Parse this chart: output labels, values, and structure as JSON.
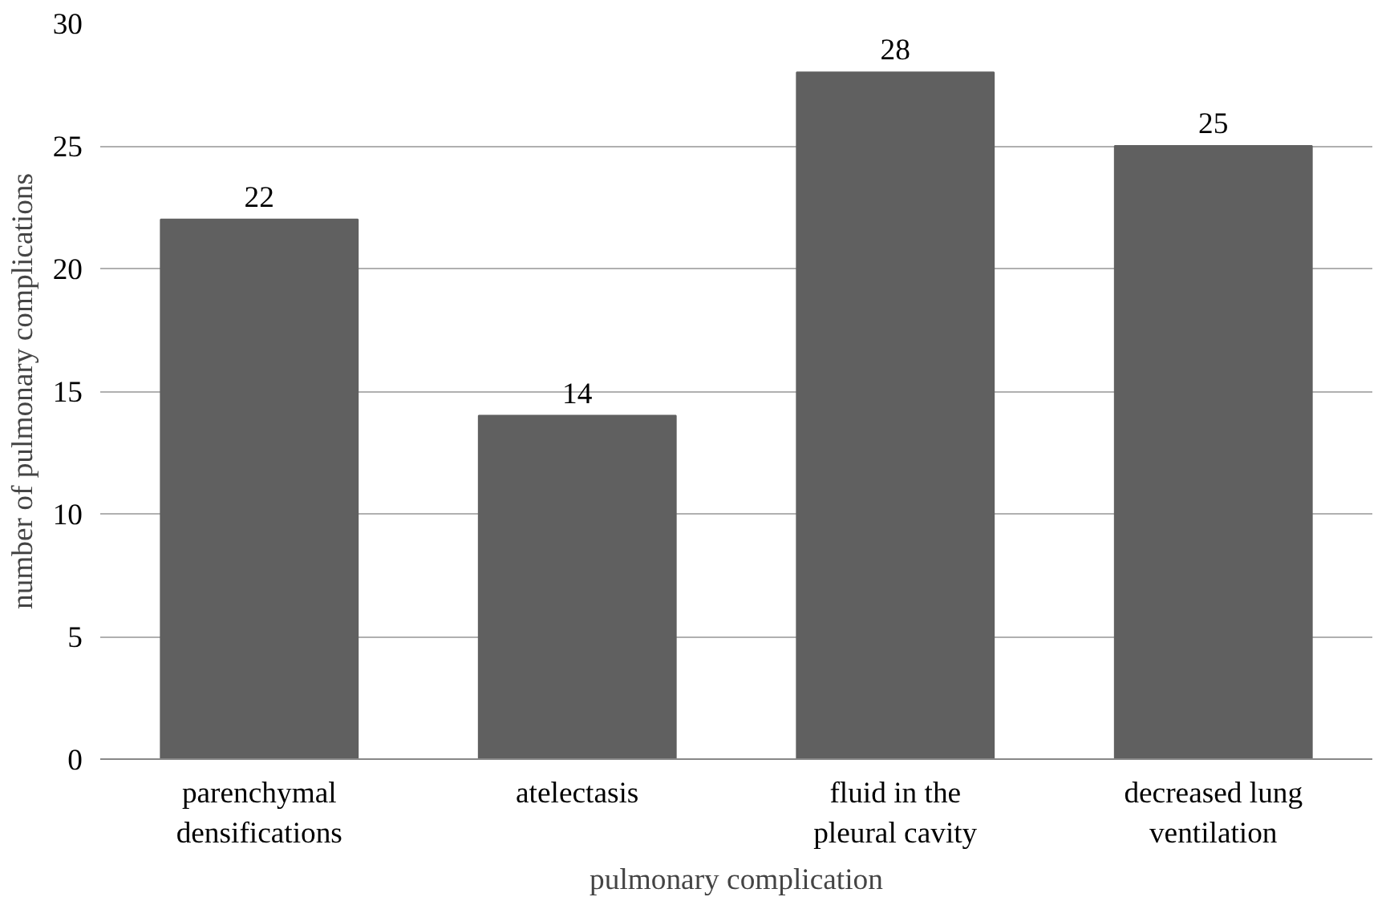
{
  "chart_data": {
    "type": "bar",
    "categories": [
      "parenchymal densifications",
      "atelectasis",
      "fluid in the pleural cavity",
      "decreased lung ventilation"
    ],
    "values": [
      22,
      14,
      28,
      25
    ],
    "color": "#606060",
    "xlabel": "pulmonary complication",
    "ylabel": "number of pulmonary complications",
    "ylim": [
      0,
      30
    ],
    "yticks": [
      0,
      5,
      10,
      15,
      20,
      25,
      30
    ],
    "grid": "y",
    "data_labels": true
  }
}
